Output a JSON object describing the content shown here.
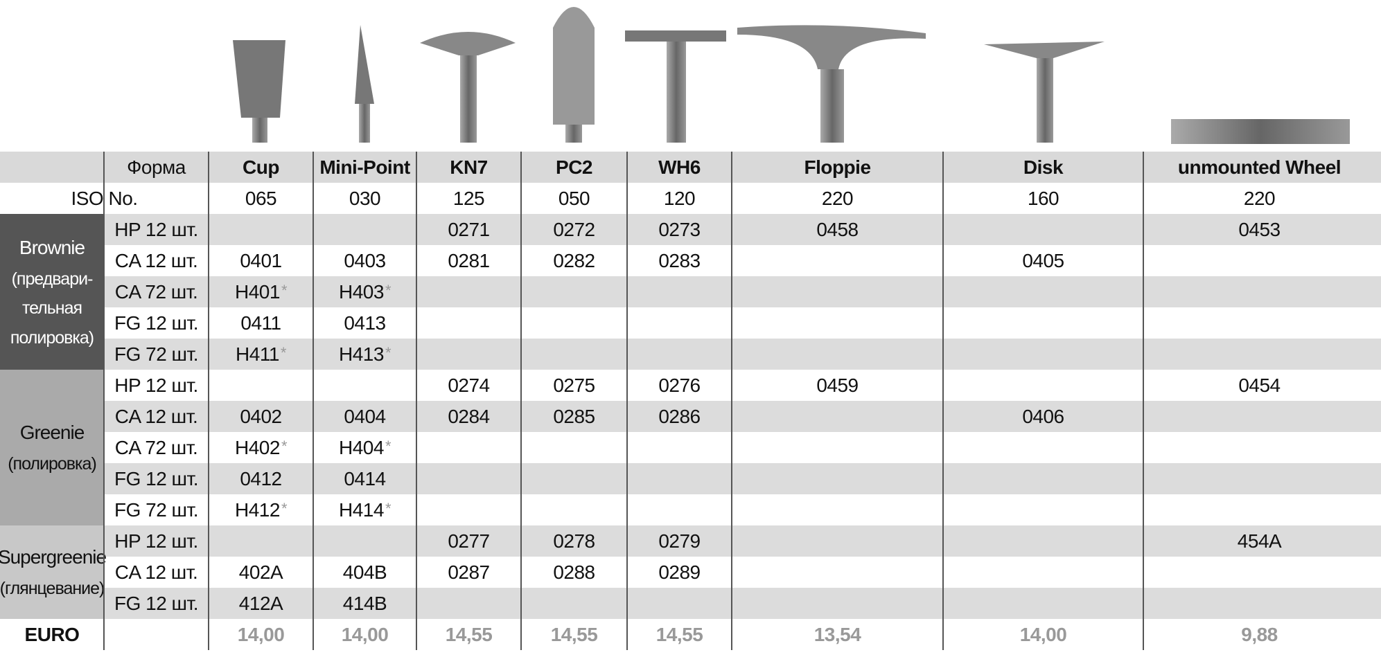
{
  "table": {
    "form_header": "Форма",
    "columns": [
      "Cup",
      "Mini-Point",
      "KN7",
      "PC2",
      "WH6",
      "Floppie",
      "Disk",
      "unmounted Wheel"
    ],
    "iso_label": "ISO No.",
    "iso": [
      "065",
      "030",
      "125",
      "050",
      "120",
      "220",
      "160",
      "220"
    ],
    "groups": [
      {
        "lines": [
          "Brownie",
          "(предвари-",
          "тельная",
          "полировка)"
        ],
        "rows": [
          {
            "form": "HP 12 шт.",
            "cells": [
              null,
              null,
              "0271",
              "0272",
              "0273",
              "0458",
              null,
              "0453"
            ]
          },
          {
            "form": "CA 12 шт.",
            "cells": [
              "0401",
              "0403",
              "0281",
              "0282",
              "0283",
              null,
              "0405",
              null
            ]
          },
          {
            "form": "CA 72 шт.",
            "cells": [
              {
                "code": "H401",
                "mark": "*"
              },
              {
                "code": "H403",
                "mark": "*"
              },
              null,
              null,
              null,
              null,
              null,
              null
            ]
          },
          {
            "form": "FG 12 шт.",
            "cells": [
              "0411",
              "0413",
              null,
              null,
              null,
              null,
              null,
              null
            ]
          },
          {
            "form": "FG 72 шт.",
            "cells": [
              {
                "code": "H411",
                "mark": "*"
              },
              {
                "code": "H413",
                "mark": "*"
              },
              null,
              null,
              null,
              null,
              null,
              null
            ]
          }
        ]
      },
      {
        "lines": [
          "Greenie",
          "(полировка)"
        ],
        "rows": [
          {
            "form": "HP 12 шт.",
            "cells": [
              null,
              null,
              "0274",
              "0275",
              "0276",
              "0459",
              null,
              "0454"
            ]
          },
          {
            "form": "CA 12 шт.",
            "cells": [
              "0402",
              "0404",
              "0284",
              "0285",
              "0286",
              null,
              "0406",
              null
            ]
          },
          {
            "form": "CA 72 шт.",
            "cells": [
              {
                "code": "H402",
                "mark": "*"
              },
              {
                "code": "H404",
                "mark": "*"
              },
              null,
              null,
              null,
              null,
              null,
              null
            ]
          },
          {
            "form": "FG 12 шт.",
            "cells": [
              "0412",
              "0414",
              null,
              null,
              null,
              null,
              null,
              null
            ]
          },
          {
            "form": "FG 72 шт.",
            "cells": [
              {
                "code": "H412",
                "mark": "*"
              },
              {
                "code": "H414",
                "mark": "*"
              },
              null,
              null,
              null,
              null,
              null,
              null
            ]
          }
        ]
      },
      {
        "lines": [
          "Supergreenie",
          "(глянцевание)"
        ],
        "rows": [
          {
            "form": "HP 12 шт.",
            "cells": [
              null,
              null,
              "0277",
              "0278",
              "0279",
              null,
              null,
              "454A"
            ]
          },
          {
            "form": "CA 12 шт.",
            "cells": [
              "402A",
              "404B",
              "0287",
              "0288",
              "0289",
              null,
              null,
              null
            ]
          },
          {
            "form": "FG 12 шт.",
            "cells": [
              "412A",
              "414B",
              null,
              null,
              null,
              null,
              null,
              null
            ]
          }
        ]
      }
    ],
    "price_label": "EURO",
    "prices": [
      "14,00",
      "14,00",
      "14,55",
      "14,55",
      "14,55",
      "13,54",
      "14,00",
      "9,88"
    ]
  }
}
